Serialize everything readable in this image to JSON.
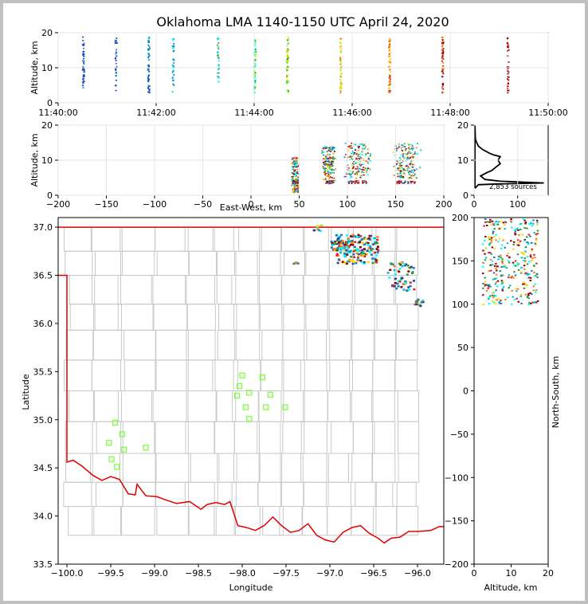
{
  "chart_data": [
    {
      "type": "scatter",
      "panel": "altitude-time",
      "title": "Oklahoma LMA 1140-1150 UTC April 24, 2020",
      "ylabel": "Altitude, km",
      "xlim": [
        "11:40:00",
        "11:50:00"
      ],
      "ylim": [
        0,
        20
      ],
      "x_ticks": [
        "11:40:00",
        "11:42:00",
        "11:44:00",
        "11:46:00",
        "11:48:00",
        "11:50:00"
      ],
      "y_ticks": [
        "0",
        "10",
        "20"
      ],
      "flash_times": [
        "11:40:30",
        "11:41:10",
        "11:41:50",
        "11:42:20",
        "11:43:15",
        "11:44:00",
        "11:44:40",
        "11:45:45",
        "11:46:45",
        "11:47:50",
        "11:49:10"
      ],
      "altitude_range": [
        3,
        19
      ]
    },
    {
      "type": "scatter",
      "panel": "altitude-east-west",
      "xlabel": "East-West, km",
      "ylabel": "Altitude, km",
      "xlim": [
        -200,
        200
      ],
      "ylim": [
        0,
        20
      ],
      "x_ticks": [
        "−200",
        "−150",
        "−100",
        "−50",
        "0",
        "50",
        "100",
        "150",
        "200"
      ],
      "y_ticks": [
        "0",
        "10",
        "20"
      ],
      "source_x_range": [
        40,
        180
      ],
      "altitude_range": [
        2,
        17
      ]
    },
    {
      "type": "line",
      "panel": "altitude-histogram",
      "xlim": [
        0,
        170
      ],
      "ylim": [
        0,
        20
      ],
      "x_ticks": [
        "0",
        "100"
      ],
      "y_ticks": [
        "0",
        "10",
        "20"
      ],
      "annotation": "2,853 sources",
      "profile": [
        [
          2,
          2
        ],
        [
          2,
          20
        ],
        [
          3,
          16
        ],
        [
          6,
          15
        ],
        [
          10,
          14
        ],
        [
          20,
          13
        ],
        [
          35,
          12
        ],
        [
          45,
          11.5
        ],
        [
          60,
          11
        ],
        [
          55,
          10
        ],
        [
          60,
          9
        ],
        [
          50,
          8
        ],
        [
          40,
          7
        ],
        [
          30,
          6.5
        ],
        [
          15,
          5.5
        ],
        [
          25,
          4.5
        ],
        [
          60,
          4
        ],
        [
          160,
          3.5
        ],
        [
          50,
          3.2
        ],
        [
          10,
          3
        ],
        [
          2,
          2
        ]
      ]
    },
    {
      "type": "map",
      "panel": "plan-view",
      "xlabel": "Longitude",
      "ylabel": "Latitude",
      "xlim": [
        -100.1,
        -95.7
      ],
      "ylim": [
        33.5,
        37.1
      ],
      "x_ticks": [
        "−100.0",
        "−99.5",
        "−99.0",
        "−98.5",
        "−98.0",
        "−97.5",
        "−97.0",
        "−96.5",
        "−96.0"
      ],
      "y_ticks": [
        "33.5",
        "34.0",
        "34.5",
        "35.0",
        "35.5",
        "36.0",
        "36.5",
        "37.0"
      ],
      "station_markers": [
        [
          -99.45,
          34.97
        ],
        [
          -99.37,
          34.85
        ],
        [
          -99.52,
          34.76
        ],
        [
          -99.35,
          34.69
        ],
        [
          -99.1,
          34.71
        ],
        [
          -99.49,
          34.59
        ],
        [
          -99.43,
          34.51
        ],
        [
          -98.0,
          35.46
        ],
        [
          -97.77,
          35.44
        ],
        [
          -98.03,
          35.35
        ],
        [
          -97.92,
          35.28
        ],
        [
          -98.06,
          35.25
        ],
        [
          -97.68,
          35.26
        ],
        [
          -97.96,
          35.13
        ],
        [
          -97.73,
          35.13
        ],
        [
          -97.51,
          35.13
        ],
        [
          -97.92,
          35.01
        ]
      ],
      "source_lon_range": [
        -97.3,
        -95.9
      ],
      "source_lat_range": [
        36.2,
        37.0
      ]
    },
    {
      "type": "scatter",
      "panel": "north-south-altitude",
      "xlabel": "Altitude, km",
      "ylabel": "North-South, km",
      "xlim": [
        0,
        20
      ],
      "ylim": [
        -200,
        200
      ],
      "x_ticks": [
        "0",
        "10",
        "20"
      ],
      "y_ticks": [
        "200",
        "150",
        "100",
        "50",
        "0",
        "−50",
        "−100",
        "−150",
        "−200"
      ],
      "source_ns_range": [
        100,
        200
      ]
    }
  ],
  "colors": {
    "border": "#e00000",
    "counties": "#c8c8c8",
    "stations": "#80ff40",
    "early": "#1f77b4",
    "late": "#d62728"
  }
}
